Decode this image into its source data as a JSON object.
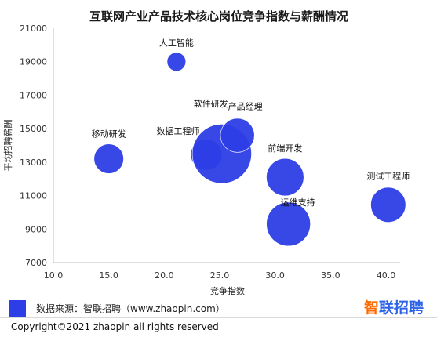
{
  "chart_data": {
    "type": "scatter",
    "title": "互联网产业产品技术核心岗位竞争指数与薪酬情况",
    "xlabel": "竞争指数",
    "ylabel": "平均招聘薪酬",
    "xlim": [
      10.0,
      40.0
    ],
    "ylim": [
      7000,
      21000
    ],
    "x_ticks": [
      "10.0",
      "15.0",
      "20.0",
      "25.0",
      "30.0",
      "35.0",
      "40.0"
    ],
    "y_ticks": [
      "7000",
      "9000",
      "11000",
      "13000",
      "15000",
      "17000",
      "19000",
      "21000"
    ],
    "grid": false,
    "points": [
      {
        "label": "人工智能",
        "x": 21.1,
        "y": 19000,
        "size": 1
      },
      {
        "label": "移动研发",
        "x": 15.0,
        "y": 13200,
        "size": 2.5
      },
      {
        "label": "数据工程师",
        "x": 23.8,
        "y": 13450,
        "size": 2.8
      },
      {
        "label": "软件研发",
        "x": 25.2,
        "y": 13500,
        "size": 10
      },
      {
        "label": "产品经理",
        "x": 26.6,
        "y": 14600,
        "size": 3.3
      },
      {
        "label": "前端开发",
        "x": 30.9,
        "y": 12100,
        "size": 4
      },
      {
        "label": "运维支持",
        "x": 31.2,
        "y": 9300,
        "size": 5.5
      },
      {
        "label": "测试工程师",
        "x": 40.2,
        "y": 10450,
        "size": 3.5
      }
    ],
    "bubble_color": "#2d3ee6"
  },
  "footer": {
    "source": "数据来源：智联招聘（www.zhaopin.com）",
    "copyright": "Copyright©2021 zhaopin all rights reserved",
    "brand_first": "智",
    "brand_rest": "联招聘"
  }
}
